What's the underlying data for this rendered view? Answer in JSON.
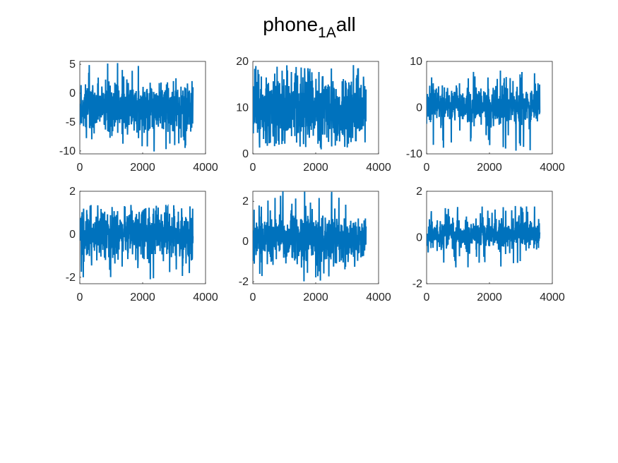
{
  "figure": {
    "title_main": "phone",
    "title_subscript": "1A",
    "title_suffix": "all"
  },
  "colors": {
    "series": "#0072BD",
    "axis": "#262626",
    "background": "#ffffff"
  },
  "chart_data": [
    {
      "type": "line",
      "panel": "row 1, column 1",
      "x_range": [
        0,
        3600
      ],
      "xlim": [
        0,
        4000
      ],
      "xticks": [
        0,
        2000,
        4000
      ],
      "ylim": [
        -10.5,
        5.5
      ],
      "yticks": [
        -10,
        -5,
        0,
        5
      ],
      "y_center": -2.3,
      "y_band": [
        -6.5,
        1.5
      ],
      "y_extremes": [
        -10.2,
        5.3
      ],
      "seed": 11,
      "grid": false
    },
    {
      "type": "line",
      "panel": "row 1, column 2",
      "x_range": [
        0,
        3600
      ],
      "xlim": [
        0,
        4000
      ],
      "xticks": [
        0,
        2000,
        4000
      ],
      "ylim": [
        0,
        20
      ],
      "yticks": [
        0,
        10,
        20
      ],
      "y_center": 9.5,
      "y_band": [
        3.0,
        16.5
      ],
      "y_extremes": [
        1.2,
        19.2
      ],
      "seed": 23,
      "grid": false
    },
    {
      "type": "line",
      "panel": "row 1, column 3",
      "x_range": [
        0,
        3600
      ],
      "xlim": [
        0,
        4000
      ],
      "xticks": [
        0,
        2000,
        4000
      ],
      "ylim": [
        -10,
        10
      ],
      "yticks": [
        -10,
        0,
        10
      ],
      "y_center": 0.3,
      "y_band": [
        -3.5,
        4.5
      ],
      "y_extremes": [
        -9.5,
        8.2
      ],
      "seed": 37,
      "grid": false
    },
    {
      "type": "line",
      "panel": "row 2, column 1",
      "x_range": [
        0,
        3600
      ],
      "xlim": [
        0,
        4000
      ],
      "xticks": [
        0,
        2000,
        4000
      ],
      "ylim": [
        -2.3,
        2
      ],
      "yticks": [
        -2,
        0,
        2
      ],
      "y_center": 0,
      "y_band": [
        -1.1,
        1.1
      ],
      "y_extremes": [
        -2.2,
        1.4
      ],
      "seed": 41,
      "grid": false
    },
    {
      "type": "line",
      "panel": "row 2, column 2",
      "x_range": [
        0,
        3600
      ],
      "xlim": [
        0,
        4000
      ],
      "xticks": [
        0,
        2000,
        4000
      ],
      "ylim": [
        -2.1,
        2.5
      ],
      "yticks": [
        -2,
        0,
        2
      ],
      "y_center": 0,
      "y_band": [
        -1.0,
        1.3
      ],
      "y_extremes": [
        -2.0,
        2.5
      ],
      "seed": 53,
      "grid": false
    },
    {
      "type": "line",
      "panel": "row 2, column 3",
      "x_range": [
        0,
        3600
      ],
      "xlim": [
        0,
        4000
      ],
      "xticks": [
        0,
        2000,
        4000
      ],
      "ylim": [
        -2,
        2
      ],
      "yticks": [
        -2,
        0,
        2
      ],
      "y_center": 0.05,
      "y_band": [
        -0.45,
        0.75
      ],
      "y_extremes": [
        -1.3,
        1.4
      ],
      "seed": 67,
      "grid": false
    }
  ]
}
